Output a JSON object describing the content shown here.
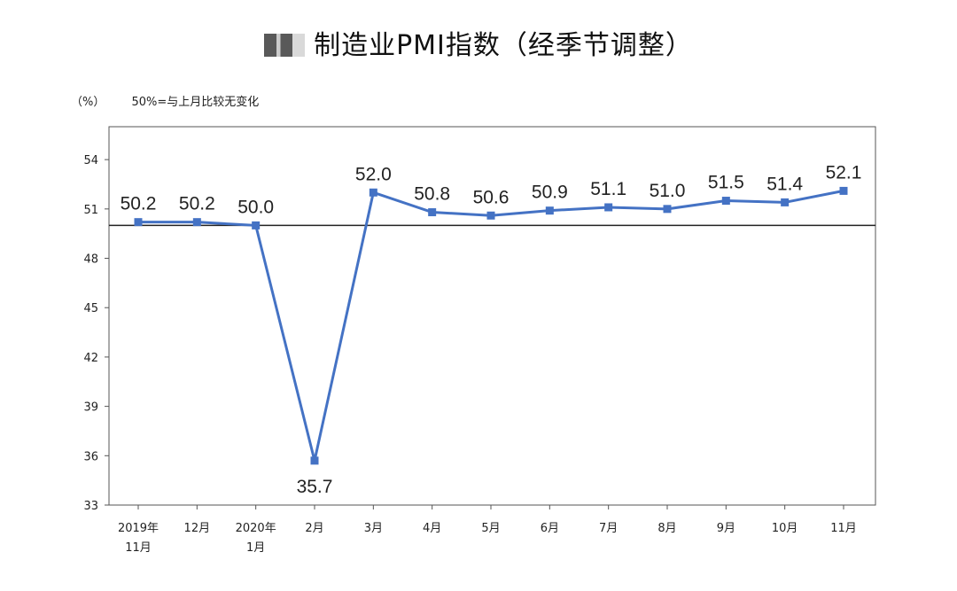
{
  "title": "制造业PMI指数（经季节调整）",
  "unit_label": "（%）",
  "reference_note": "50%=与上月比较无变化",
  "chart_data": {
    "type": "line",
    "title": "制造业PMI指数（经季节调整）",
    "xlabel": "",
    "ylabel": "（%）",
    "categories": [
      [
        "2019年",
        "11月"
      ],
      [
        "12月"
      ],
      [
        "2020年",
        "1月"
      ],
      [
        "2月"
      ],
      [
        "3月"
      ],
      [
        "4月"
      ],
      [
        "5月"
      ],
      [
        "6月"
      ],
      [
        "7月"
      ],
      [
        "8月"
      ],
      [
        "9月"
      ],
      [
        "10月"
      ],
      [
        "11月"
      ]
    ],
    "series": [
      {
        "values": [
          50.2,
          50.2,
          50.0,
          35.7,
          52.0,
          50.8,
          50.6,
          50.9,
          51.1,
          51.0,
          51.5,
          51.4,
          52.1
        ]
      }
    ],
    "data_labels": [
      "50.2",
      "50.2",
      "50.0",
      "35.7",
      "52.0",
      "50.8",
      "50.6",
      "50.9",
      "51.1",
      "51.0",
      "51.5",
      "51.4",
      "52.1"
    ],
    "ylim": [
      33,
      56
    ],
    "yticks": [
      33,
      36,
      39,
      42,
      45,
      48,
      51,
      54
    ],
    "reference_line": 50,
    "grid": false,
    "colors": {
      "line": "#4472c4",
      "marker": "#4472c4",
      "axis": "#555555",
      "reference": "#222222"
    }
  }
}
